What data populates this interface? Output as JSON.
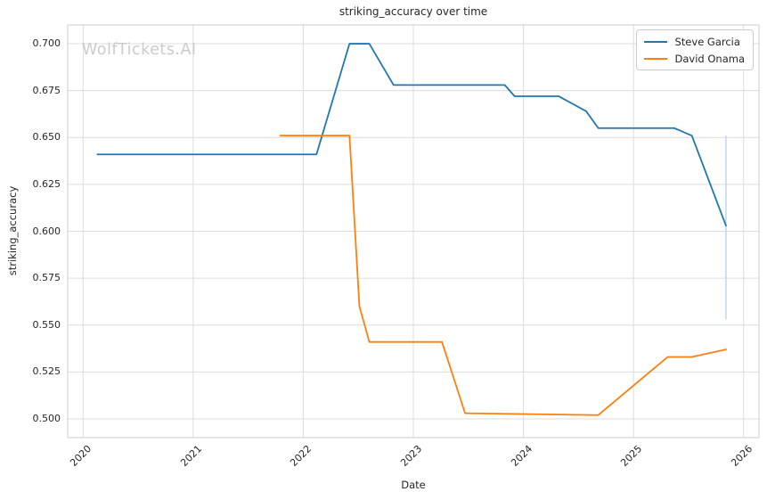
{
  "figure": {
    "watermark": "WolfTickets.AI"
  },
  "chart_data": {
    "type": "line",
    "title": "striking_accuracy over time",
    "xlabel": "Date",
    "ylabel": "striking_accuracy",
    "xlim": [
      2019.86,
      2026.14
    ],
    "ylim": [
      0.49,
      0.71
    ],
    "x_ticks": [
      2020,
      2021,
      2022,
      2023,
      2024,
      2025,
      2026
    ],
    "y_ticks": [
      0.5,
      0.525,
      0.55,
      0.575,
      0.6,
      0.625,
      0.65,
      0.675,
      0.7
    ],
    "grid": true,
    "grid_color": "#dcdcdc",
    "spine_color": "#cccccc",
    "legend_position": "upper right",
    "series": [
      {
        "name": "Steve Garcia",
        "color": "#1f77b4",
        "points": [
          [
            2020.13,
            0.641
          ],
          [
            2022.12,
            0.641
          ],
          [
            2022.42,
            0.7
          ],
          [
            2022.6,
            0.7
          ],
          [
            2022.82,
            0.678
          ],
          [
            2023.83,
            0.678
          ],
          [
            2023.92,
            0.672
          ],
          [
            2024.32,
            0.672
          ],
          [
            2024.57,
            0.664
          ],
          [
            2024.68,
            0.655
          ],
          [
            2025.37,
            0.655
          ],
          [
            2025.53,
            0.651
          ],
          [
            2025.84,
            0.603
          ]
        ]
      },
      {
        "name": "David Onama",
        "color": "#ff7f0e",
        "points": [
          [
            2021.79,
            0.651
          ],
          [
            2022.42,
            0.651
          ],
          [
            2022.51,
            0.56
          ],
          [
            2022.6,
            0.541
          ],
          [
            2023.26,
            0.541
          ],
          [
            2023.47,
            0.503
          ],
          [
            2024.68,
            0.502
          ],
          [
            2025.31,
            0.533
          ],
          [
            2025.53,
            0.533
          ],
          [
            2025.84,
            0.537
          ]
        ]
      }
    ],
    "annotations": [
      {
        "type": "vline",
        "x": 2025.84,
        "y_from": 0.553,
        "y_to": 0.651,
        "color": "#bdd7ec"
      }
    ]
  }
}
